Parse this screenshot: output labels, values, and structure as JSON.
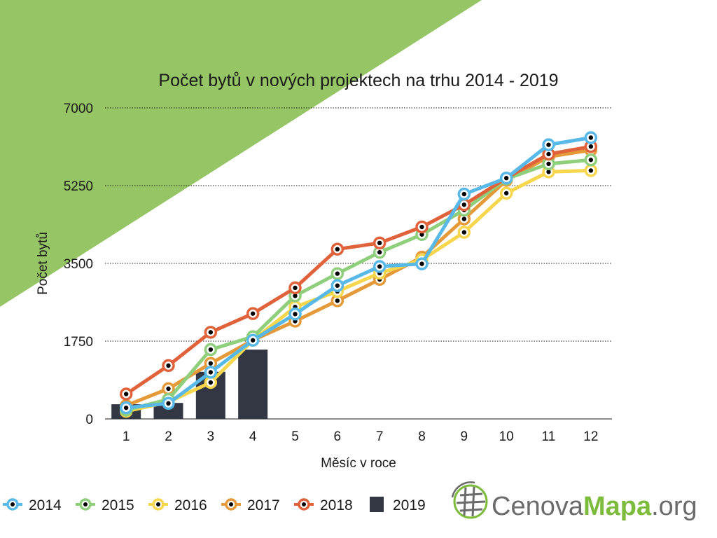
{
  "colors": {
    "background_triangle": "#95c565",
    "grid": "#1a1a1a",
    "marker_center": "#000000",
    "bar": "#333743",
    "logo_gray": "#6b6b6b",
    "logo_green": "#7dbb3c"
  },
  "logo": {
    "part1": "Cenova",
    "part2": "Mapa",
    "part3": ".org"
  },
  "chart_data": {
    "type": "line",
    "title": "Počet bytů v nových projektech na trhu 2014 - 2019",
    "xlabel": "Měsíc v roce",
    "ylabel": "Počet bytů",
    "categories": [
      "1",
      "2",
      "3",
      "4",
      "5",
      "6",
      "7",
      "8",
      "9",
      "10",
      "11",
      "12"
    ],
    "ylim": [
      0,
      7000
    ],
    "yticks": [
      "0",
      "1750",
      "3500",
      "5250",
      "7000"
    ],
    "grid": "horizontal-dotted",
    "legend_position": "bottom-left",
    "series": [
      {
        "name": "2019",
        "kind": "bar",
        "color": "#333743",
        "values": [
          330,
          360,
          1060,
          1560,
          null,
          null,
          null,
          null,
          null,
          null,
          null,
          null
        ]
      },
      {
        "name": "2017",
        "kind": "line",
        "color": "#e59a3a",
        "values": [
          300,
          680,
          1250,
          1770,
          2200,
          2660,
          3140,
          3640,
          4500,
          5370,
          5900,
          6050
        ]
      },
      {
        "name": "2016",
        "kind": "line",
        "color": "#f5d64c",
        "values": [
          170,
          380,
          820,
          1770,
          2520,
          2870,
          3280,
          3580,
          4200,
          5080,
          5560,
          5590
        ]
      },
      {
        "name": "2015",
        "kind": "line",
        "color": "#8fcf7c",
        "values": [
          200,
          440,
          1560,
          1850,
          2770,
          3270,
          3750,
          4150,
          4700,
          5400,
          5740,
          5830
        ]
      },
      {
        "name": "2018",
        "kind": "line",
        "color": "#e0623b",
        "values": [
          560,
          1200,
          1950,
          2370,
          2950,
          3820,
          3960,
          4320,
          4820,
          5420,
          5960,
          6130
        ]
      },
      {
        "name": "2014",
        "kind": "line",
        "color": "#58b9e8",
        "values": [
          250,
          350,
          1050,
          1770,
          2360,
          3000,
          3430,
          3490,
          5060,
          5420,
          6170,
          6330
        ]
      }
    ],
    "legend": [
      {
        "name": "2014",
        "color": "#58b9e8",
        "kind": "line"
      },
      {
        "name": "2015",
        "color": "#8fcf7c",
        "kind": "line"
      },
      {
        "name": "2016",
        "color": "#f5d64c",
        "kind": "line"
      },
      {
        "name": "2017",
        "color": "#e59a3a",
        "kind": "line"
      },
      {
        "name": "2018",
        "color": "#e0623b",
        "kind": "line"
      },
      {
        "name": "2019",
        "color": "#333743",
        "kind": "bar"
      }
    ]
  }
}
